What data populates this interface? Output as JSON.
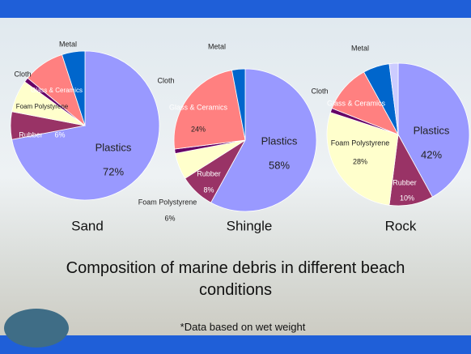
{
  "slide": {
    "title": "Composition of marine debris in different beach conditions",
    "note": "*Data based on wet weight"
  },
  "chart_data": [
    {
      "type": "pie",
      "title": "Sand",
      "categories": [
        "Plastics",
        "Rubber",
        "Foam Polystyrene",
        "Cloth",
        "Glass & Ceramics",
        "Metal"
      ],
      "values": [
        72,
        6,
        7,
        1,
        9,
        5
      ],
      "value_labels": [
        "72%",
        "6%",
        null,
        null,
        null,
        null
      ],
      "colors": [
        "#9999ff",
        "#993366",
        "#ffffcc",
        "#660066",
        "#ff8080",
        "#0066cc"
      ]
    },
    {
      "type": "pie",
      "title": "Shingle",
      "categories": [
        "Plastics",
        "Rubber",
        "Foam Polystyrene",
        "Cloth",
        "Glass & Ceramics",
        "Metal"
      ],
      "values": [
        58,
        8,
        6,
        1,
        24,
        3
      ],
      "value_labels": [
        "58%",
        "8%",
        "6%",
        null,
        "24%",
        null
      ],
      "colors": [
        "#9999ff",
        "#993366",
        "#ffffcc",
        "#660066",
        "#ff8080",
        "#0066cc"
      ]
    },
    {
      "type": "pie",
      "title": "Rock",
      "categories": [
        "Plastics",
        "Rubber",
        "Foam Polystyrene",
        "Cloth",
        "Glass & Ceramics",
        "Metal",
        null
      ],
      "values": [
        42,
        10,
        28,
        1,
        11,
        6,
        2
      ],
      "value_labels": [
        "42%",
        "10%",
        "28%",
        null,
        null,
        null,
        null
      ],
      "colors": [
        "#9999ff",
        "#993366",
        "#ffffcc",
        "#660066",
        "#ff8080",
        "#0066cc",
        "#ccccff"
      ]
    }
  ]
}
